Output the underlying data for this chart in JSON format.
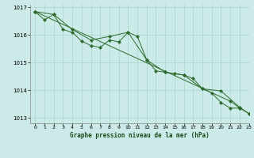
{
  "title": "Graphe pression niveau de la mer (hPa)",
  "background_color": "#cceae7",
  "grid_color": "#aad4d0",
  "line_color": "#2d6b2d",
  "xlim": [
    -0.5,
    23
  ],
  "ylim": [
    1012.8,
    1017.1
  ],
  "yticks": [
    1013,
    1014,
    1015,
    1016,
    1017
  ],
  "xticks": [
    0,
    1,
    2,
    3,
    4,
    5,
    6,
    7,
    8,
    9,
    10,
    11,
    12,
    13,
    14,
    15,
    16,
    17,
    18,
    19,
    20,
    21,
    22,
    23
  ],
  "s1_x": [
    0,
    1,
    2,
    3,
    4,
    5,
    6,
    7,
    8,
    9,
    10,
    11,
    12,
    13,
    14,
    15,
    16,
    17,
    18,
    19,
    20,
    21,
    22
  ],
  "s1_y": [
    1016.85,
    1016.55,
    1016.75,
    1016.2,
    1016.1,
    1015.78,
    1015.62,
    1015.55,
    1015.82,
    1015.75,
    1016.1,
    1015.95,
    1015.1,
    1014.7,
    1014.65,
    1014.6,
    1014.55,
    1014.42,
    1014.05,
    1013.9,
    1013.55,
    1013.35,
    1013.35
  ],
  "s2_x": [
    0,
    2,
    4,
    6,
    8,
    10,
    12,
    14,
    16,
    18,
    20,
    22,
    23
  ],
  "s2_y": [
    1016.85,
    1016.75,
    1016.2,
    1015.82,
    1015.95,
    1016.1,
    1015.1,
    1014.65,
    1014.55,
    1014.05,
    1013.97,
    1013.38,
    1013.15
  ],
  "s3_x": [
    0,
    1,
    2,
    3,
    4,
    5,
    6,
    7,
    8,
    9,
    10,
    11,
    12,
    13,
    14,
    15,
    16,
    17,
    18,
    19,
    20,
    21,
    22,
    23
  ],
  "s3_y": [
    1016.85,
    null,
    null,
    null,
    null,
    null,
    null,
    null,
    null,
    null,
    null,
    null,
    null,
    null,
    null,
    null,
    null,
    null,
    null,
    null,
    null,
    1013.6,
    1013.35,
    1013.15
  ]
}
